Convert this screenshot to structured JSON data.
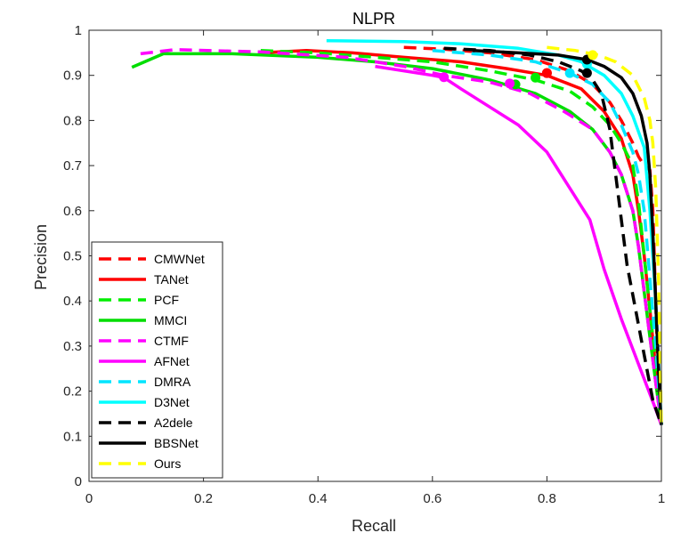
{
  "chart_data": {
    "type": "line",
    "title": "NLPR",
    "xlabel": "Recall",
    "ylabel": "Precision",
    "xlim": [
      0,
      1
    ],
    "ylim": [
      0,
      1
    ],
    "x_ticks": [
      "0",
      "0.2",
      "0.4",
      "0.6",
      "0.8",
      "1"
    ],
    "y_ticks": [
      "0",
      "0.1",
      "0.2",
      "0.3",
      "0.4",
      "0.5",
      "0.6",
      "0.7",
      "0.8",
      "0.9",
      "1"
    ],
    "grid": false,
    "legend_position": "bottom-left",
    "series": [
      {
        "name": "CMWNet",
        "color": "#ff0000",
        "style": "dashed",
        "points": [
          [
            0.55,
            0.962
          ],
          [
            0.62,
            0.958
          ],
          [
            0.7,
            0.95
          ],
          [
            0.78,
            0.935
          ],
          [
            0.84,
            0.91
          ],
          [
            0.88,
            0.88
          ],
          [
            0.91,
            0.84
          ],
          [
            0.93,
            0.8
          ],
          [
            0.95,
            0.75
          ],
          [
            0.96,
            0.72
          ],
          [
            0.97,
            0.7
          ],
          [
            0.98,
            0.69
          ],
          [
            0.985,
            0.6
          ],
          [
            0.99,
            0.4
          ],
          [
            0.995,
            0.2
          ],
          [
            1.0,
            0.125
          ]
        ],
        "marker": [
          0.8,
          0.905
        ]
      },
      {
        "name": "TANet",
        "color": "#ff0000",
        "style": "solid",
        "points": [
          [
            0.3,
            0.95
          ],
          [
            0.38,
            0.955
          ],
          [
            0.46,
            0.95
          ],
          [
            0.55,
            0.94
          ],
          [
            0.65,
            0.93
          ],
          [
            0.73,
            0.915
          ],
          [
            0.8,
            0.9
          ],
          [
            0.86,
            0.87
          ],
          [
            0.9,
            0.82
          ],
          [
            0.93,
            0.76
          ],
          [
            0.95,
            0.68
          ],
          [
            0.96,
            0.6
          ],
          [
            0.97,
            0.5
          ],
          [
            0.98,
            0.38
          ],
          [
            0.99,
            0.25
          ],
          [
            1.0,
            0.125
          ]
        ],
        "marker": [
          0.8,
          0.905
        ]
      },
      {
        "name": "PCF",
        "color": "#00ee00",
        "style": "dashed",
        "points": [
          [
            0.3,
            0.955
          ],
          [
            0.4,
            0.95
          ],
          [
            0.5,
            0.94
          ],
          [
            0.6,
            0.93
          ],
          [
            0.7,
            0.91
          ],
          [
            0.78,
            0.89
          ],
          [
            0.84,
            0.865
          ],
          [
            0.88,
            0.83
          ],
          [
            0.91,
            0.79
          ],
          [
            0.93,
            0.75
          ],
          [
            0.95,
            0.7
          ],
          [
            0.96,
            0.62
          ],
          [
            0.97,
            0.5
          ],
          [
            0.98,
            0.38
          ],
          [
            0.99,
            0.26
          ],
          [
            1.0,
            0.125
          ]
        ],
        "marker": [
          0.78,
          0.895
        ]
      },
      {
        "name": "MMCI",
        "color": "#00dd00",
        "style": "solid",
        "points": [
          [
            0.075,
            0.918
          ],
          [
            0.13,
            0.948
          ],
          [
            0.25,
            0.948
          ],
          [
            0.4,
            0.94
          ],
          [
            0.5,
            0.93
          ],
          [
            0.6,
            0.915
          ],
          [
            0.7,
            0.89
          ],
          [
            0.78,
            0.86
          ],
          [
            0.84,
            0.82
          ],
          [
            0.88,
            0.78
          ],
          [
            0.91,
            0.73
          ],
          [
            0.93,
            0.68
          ],
          [
            0.95,
            0.6
          ],
          [
            0.96,
            0.52
          ],
          [
            0.97,
            0.42
          ],
          [
            0.98,
            0.32
          ],
          [
            0.99,
            0.22
          ],
          [
            1.0,
            0.125
          ]
        ],
        "marker": [
          0.745,
          0.88
        ]
      },
      {
        "name": "CTMF",
        "color": "#ff00ff",
        "style": "dashed",
        "points": [
          [
            0.09,
            0.948
          ],
          [
            0.15,
            0.957
          ],
          [
            0.3,
            0.952
          ],
          [
            0.45,
            0.94
          ],
          [
            0.55,
            0.92
          ],
          [
            0.62,
            0.9
          ],
          [
            0.7,
            0.885
          ],
          [
            0.77,
            0.86
          ],
          [
            0.83,
            0.82
          ],
          [
            0.88,
            0.78
          ],
          [
            0.91,
            0.73
          ],
          [
            0.93,
            0.68
          ],
          [
            0.95,
            0.6
          ],
          [
            0.96,
            0.52
          ],
          [
            0.97,
            0.42
          ],
          [
            0.98,
            0.32
          ],
          [
            0.99,
            0.22
          ],
          [
            1.0,
            0.125
          ]
        ],
        "marker": [
          0.735,
          0.882
        ]
      },
      {
        "name": "AFNet",
        "color": "#ff00ff",
        "style": "solid",
        "points": [
          [
            0.5,
            0.92
          ],
          [
            0.55,
            0.91
          ],
          [
            0.6,
            0.9
          ],
          [
            0.62,
            0.895
          ],
          [
            0.65,
            0.87
          ],
          [
            0.7,
            0.83
          ],
          [
            0.75,
            0.79
          ],
          [
            0.8,
            0.73
          ],
          [
            0.84,
            0.65
          ],
          [
            0.875,
            0.58
          ],
          [
            0.9,
            0.47
          ],
          [
            0.93,
            0.36
          ],
          [
            0.96,
            0.26
          ],
          [
            0.99,
            0.16
          ],
          [
            1.0,
            0.125
          ]
        ],
        "marker": [
          0.62,
          0.896
        ]
      },
      {
        "name": "DMRA",
        "color": "#00e5ff",
        "style": "dashed",
        "points": [
          [
            0.6,
            0.955
          ],
          [
            0.7,
            0.945
          ],
          [
            0.78,
            0.93
          ],
          [
            0.84,
            0.905
          ],
          [
            0.88,
            0.88
          ],
          [
            0.91,
            0.84
          ],
          [
            0.93,
            0.79
          ],
          [
            0.95,
            0.73
          ],
          [
            0.96,
            0.68
          ],
          [
            0.97,
            0.6
          ],
          [
            0.98,
            0.45
          ],
          [
            0.99,
            0.3
          ],
          [
            1.0,
            0.125
          ]
        ],
        "marker": [
          0.84,
          0.905
        ]
      },
      {
        "name": "D3Net",
        "color": "#00ffff",
        "style": "solid",
        "points": [
          [
            0.415,
            0.977
          ],
          [
            0.55,
            0.975
          ],
          [
            0.65,
            0.97
          ],
          [
            0.75,
            0.96
          ],
          [
            0.82,
            0.945
          ],
          [
            0.86,
            0.93
          ],
          [
            0.9,
            0.9
          ],
          [
            0.93,
            0.86
          ],
          [
            0.95,
            0.81
          ],
          [
            0.97,
            0.74
          ],
          [
            0.98,
            0.6
          ],
          [
            0.99,
            0.4
          ],
          [
            1.0,
            0.125
          ]
        ],
        "marker": [
          0.87,
          0.925
        ]
      },
      {
        "name": "A2dele",
        "color": "#000000",
        "style": "dashed",
        "points": [
          [
            0.62,
            0.96
          ],
          [
            0.7,
            0.955
          ],
          [
            0.77,
            0.945
          ],
          [
            0.82,
            0.93
          ],
          [
            0.86,
            0.91
          ],
          [
            0.88,
            0.89
          ],
          [
            0.895,
            0.86
          ],
          [
            0.91,
            0.78
          ],
          [
            0.92,
            0.68
          ],
          [
            0.93,
            0.58
          ],
          [
            0.94,
            0.48
          ],
          [
            0.955,
            0.38
          ],
          [
            0.97,
            0.28
          ],
          [
            0.985,
            0.18
          ],
          [
            1.0,
            0.125
          ]
        ],
        "marker": [
          0.87,
          0.905
        ]
      },
      {
        "name": "BBSNet",
        "color": "#000000",
        "style": "solid",
        "points": [
          [
            0.67,
            0.955
          ],
          [
            0.75,
            0.95
          ],
          [
            0.82,
            0.945
          ],
          [
            0.87,
            0.935
          ],
          [
            0.9,
            0.92
          ],
          [
            0.93,
            0.895
          ],
          [
            0.95,
            0.86
          ],
          [
            0.965,
            0.81
          ],
          [
            0.975,
            0.75
          ],
          [
            0.98,
            0.68
          ],
          [
            0.985,
            0.55
          ],
          [
            0.99,
            0.4
          ],
          [
            0.995,
            0.25
          ],
          [
            1.0,
            0.125
          ]
        ],
        "marker": [
          0.87,
          0.935
        ]
      },
      {
        "name": "Ours",
        "color": "#ffff00",
        "style": "dashed",
        "points": [
          [
            0.8,
            0.962
          ],
          [
            0.85,
            0.955
          ],
          [
            0.89,
            0.945
          ],
          [
            0.92,
            0.93
          ],
          [
            0.95,
            0.9
          ],
          [
            0.97,
            0.85
          ],
          [
            0.98,
            0.8
          ],
          [
            0.985,
            0.75
          ],
          [
            0.99,
            0.65
          ],
          [
            0.995,
            0.45
          ],
          [
            1.0,
            0.125
          ]
        ],
        "marker": [
          0.88,
          0.945
        ]
      }
    ]
  }
}
